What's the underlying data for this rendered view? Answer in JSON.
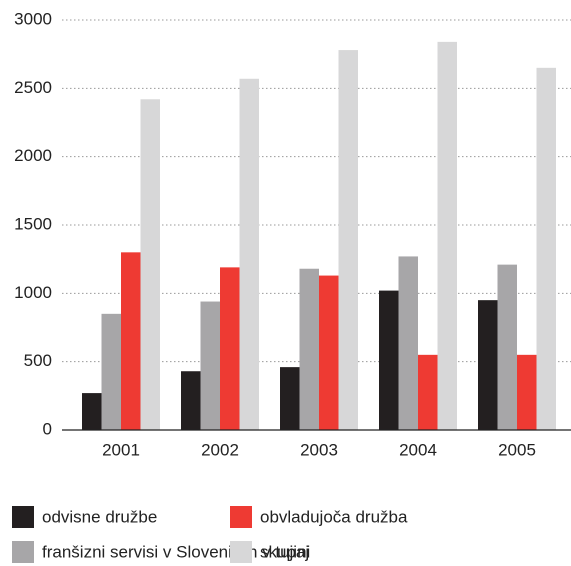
{
  "chart_data": {
    "type": "bar",
    "categories": [
      "2001",
      "2002",
      "2003",
      "2004",
      "2005"
    ],
    "series": [
      {
        "name": "odvisne družbe",
        "color": "#231f20",
        "values": [
          270,
          430,
          460,
          1020,
          950
        ]
      },
      {
        "name": "franšizni servisi v Sloveniji in v tujini",
        "color": "#a7a6a8",
        "values": [
          850,
          940,
          1180,
          1270,
          1210
        ]
      },
      {
        "name": "obvladujoča družba",
        "color": "#ee3a33",
        "values": [
          1300,
          1190,
          1130,
          550,
          550
        ]
      },
      {
        "name": "skupaj",
        "color": "#d7d7d8",
        "values": [
          2420,
          2570,
          2780,
          2840,
          2650
        ]
      }
    ],
    "ylim": [
      0,
      3000
    ],
    "yticks": [
      0,
      500,
      1000,
      1500,
      2000,
      2500,
      3000
    ],
    "grid": true
  }
}
